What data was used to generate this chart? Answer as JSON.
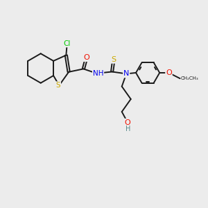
{
  "background_color": "#ececec",
  "bond_color": "#1a1a1a",
  "atom_colors": {
    "Cl": "#00cc00",
    "O": "#ee1100",
    "S": "#ccaa00",
    "N": "#0000ee",
    "H": "#558888",
    "C": "#1a1a1a"
  },
  "figsize": [
    3.0,
    3.0
  ],
  "dpi": 100
}
